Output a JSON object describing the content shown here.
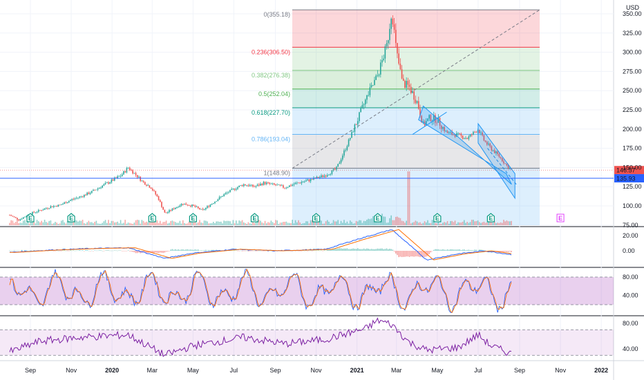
{
  "chart_data": {
    "type": "candlestick",
    "currency": "USD",
    "x_ticks": [
      "Sep",
      "Nov",
      "2020",
      "Mar",
      "May",
      "Jul",
      "Sep",
      "Nov",
      "2021",
      "Mar",
      "May",
      "Jul",
      "Sep",
      "Nov",
      "2022"
    ],
    "price_axis": {
      "ticks": [
        "350.00",
        "325.00",
        "300.00",
        "275.00",
        "250.00",
        "225.00",
        "200.00",
        "175.00",
        "150.00",
        "125.00",
        "100.00",
        "75.00"
      ],
      "range": [
        70,
        360
      ]
    },
    "price_labels": [
      {
        "value": "146.57",
        "color": "#ef5350"
      },
      {
        "value": "135.93",
        "color": "#2962ff"
      }
    ],
    "fibonacci": [
      {
        "label": "0(355.18)",
        "level": 355.18,
        "color": "#787b86"
      },
      {
        "label": "0.236(306.50)",
        "level": 306.5,
        "color": "#f23645"
      },
      {
        "label": "0.382(276.38)",
        "level": 276.38,
        "color": "#81c784"
      },
      {
        "label": "0.5(252.04)",
        "level": 252.04,
        "color": "#4caf50"
      },
      {
        "label": "0.618(227.70)",
        "level": 227.7,
        "color": "#089981"
      },
      {
        "label": "0.786(193.04)",
        "level": 193.04,
        "color": "#64b5f6"
      },
      {
        "label": "1(148.90)",
        "level": 148.9,
        "color": "#787b86"
      }
    ],
    "horizontal_line": 135.93,
    "price_series": [
      [
        "2019-08-01",
        88
      ],
      [
        "2019-08-15",
        82
      ],
      [
        "2019-09-01",
        90
      ],
      [
        "2019-09-15",
        94
      ],
      [
        "2019-10-01",
        99
      ],
      [
        "2019-10-15",
        101
      ],
      [
        "2019-11-01",
        108
      ],
      [
        "2019-11-15",
        112
      ],
      [
        "2019-12-01",
        118
      ],
      [
        "2019-12-15",
        125
      ],
      [
        "2020-01-01",
        133
      ],
      [
        "2020-01-15",
        140
      ],
      [
        "2020-01-25",
        150
      ],
      [
        "2020-02-05",
        141
      ],
      [
        "2020-02-15",
        132
      ],
      [
        "2020-02-28",
        124
      ],
      [
        "2020-03-10",
        110
      ],
      [
        "2020-03-20",
        90
      ],
      [
        "2020-04-01",
        96
      ],
      [
        "2020-04-15",
        103
      ],
      [
        "2020-05-01",
        100
      ],
      [
        "2020-05-15",
        94
      ],
      [
        "2020-06-01",
        105
      ],
      [
        "2020-06-15",
        114
      ],
      [
        "2020-07-01",
        122
      ],
      [
        "2020-07-15",
        128
      ],
      [
        "2020-08-01",
        125
      ],
      [
        "2020-08-15",
        130
      ],
      [
        "2020-09-01",
        127
      ],
      [
        "2020-09-15",
        124
      ],
      [
        "2020-10-01",
        129
      ],
      [
        "2020-10-15",
        132
      ],
      [
        "2020-11-01",
        136
      ],
      [
        "2020-11-15",
        140
      ],
      [
        "2020-12-01",
        148
      ],
      [
        "2020-12-15",
        175
      ],
      [
        "2021-01-01",
        210
      ],
      [
        "2021-01-15",
        240
      ],
      [
        "2021-02-01",
        270
      ],
      [
        "2021-02-15",
        310
      ],
      [
        "2021-02-22",
        355
      ],
      [
        "2021-03-01",
        300
      ],
      [
        "2021-03-10",
        260
      ],
      [
        "2021-03-20",
        255
      ],
      [
        "2021-04-01",
        235
      ],
      [
        "2021-04-10",
        205
      ],
      [
        "2021-04-20",
        215
      ],
      [
        "2021-05-01",
        212
      ],
      [
        "2021-05-15",
        195
      ],
      [
        "2021-06-01",
        192
      ],
      [
        "2021-06-15",
        188
      ],
      [
        "2021-07-01",
        200
      ],
      [
        "2021-07-10",
        185
      ],
      [
        "2021-07-20",
        175
      ],
      [
        "2021-08-01",
        165
      ],
      [
        "2021-08-15",
        150
      ],
      [
        "2021-08-20",
        146.57
      ]
    ],
    "earnings_markers": [
      "2019-09-01",
      "2019-11-01",
      "2020-03-01",
      "2020-05-01",
      "2020-08-01",
      "2020-11-01",
      "2021-02-01",
      "2021-05-01",
      "2021-07-20",
      "2021-11-01"
    ],
    "macd": {
      "ticks": [
        "20.00",
        "0.00"
      ],
      "series": [
        [
          "2019-08-01",
          -2
        ],
        [
          "2019-10-01",
          1
        ],
        [
          "2019-12-01",
          3
        ],
        [
          "2020-01-25",
          4
        ],
        [
          "2020-03-20",
          -10
        ],
        [
          "2020-05-01",
          -3
        ],
        [
          "2020-07-01",
          2
        ],
        [
          "2020-09-01",
          0
        ],
        [
          "2020-11-15",
          2
        ],
        [
          "2021-01-01",
          15
        ],
        [
          "2021-02-22",
          28
        ],
        [
          "2021-03-20",
          8
        ],
        [
          "2021-04-15",
          -12
        ],
        [
          "2021-06-01",
          -4
        ],
        [
          "2021-07-10",
          0
        ],
        [
          "2021-08-20",
          -5
        ]
      ]
    },
    "stochastic": {
      "ticks": [
        "80.00",
        "40.00"
      ],
      "band": [
        20,
        80
      ]
    },
    "rsi": {
      "ticks": [
        "80.00",
        "40.00"
      ],
      "band": [
        30,
        70
      ],
      "series": [
        [
          "2019-08-01",
          35
        ],
        [
          "2019-09-15",
          52
        ],
        [
          "2019-11-15",
          58
        ],
        [
          "2020-01-25",
          62
        ],
        [
          "2020-03-20",
          30
        ],
        [
          "2020-05-01",
          45
        ],
        [
          "2020-07-15",
          58
        ],
        [
          "2020-09-15",
          48
        ],
        [
          "2020-11-15",
          55
        ],
        [
          "2021-01-15",
          72
        ],
        [
          "2021-02-01",
          85
        ],
        [
          "2021-02-22",
          78
        ],
        [
          "2021-03-20",
          50
        ],
        [
          "2021-04-15",
          38
        ],
        [
          "2021-06-01",
          42
        ],
        [
          "2021-07-01",
          62
        ],
        [
          "2021-07-20",
          45
        ],
        [
          "2021-08-20",
          32
        ]
      ]
    }
  }
}
